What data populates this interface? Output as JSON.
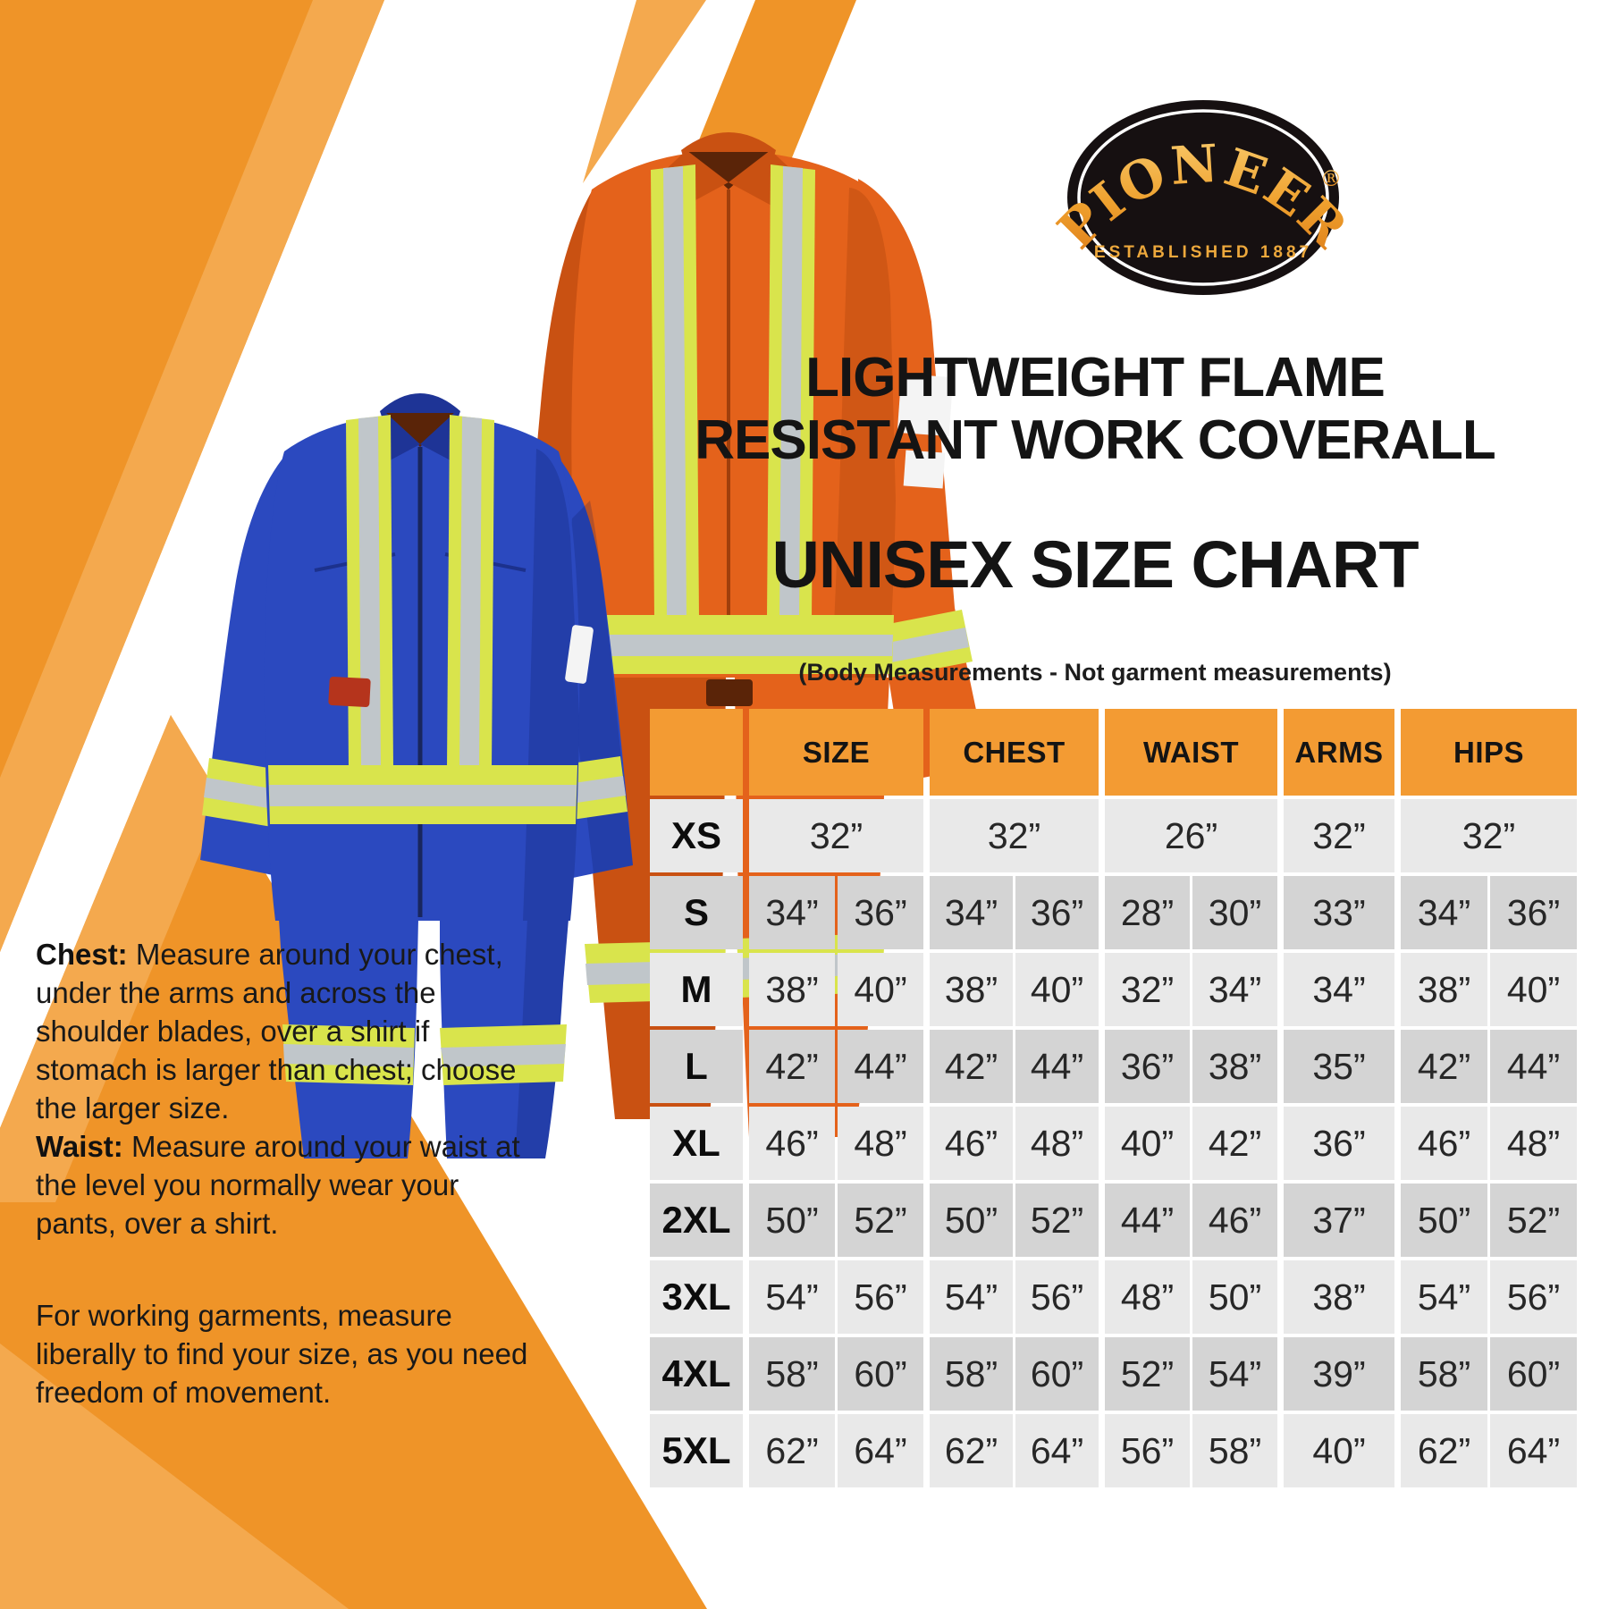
{
  "brand": {
    "name": "PIONEER",
    "registered_mark": "®",
    "established": "ESTABLISHED 1887"
  },
  "title": {
    "line1": "LIGHTWEIGHT FLAME",
    "line2": "RESISTANT WORK COVERALL"
  },
  "subtitle": "UNISEX SIZE CHART",
  "note": "(Body Measurements - Not garment measurements)",
  "size_chart": {
    "columns": [
      "SIZE",
      "CHEST",
      "WAIST",
      "ARMS",
      "HIPS"
    ],
    "rows": [
      {
        "label": "XS",
        "size": [
          "32”"
        ],
        "chest": [
          "32”"
        ],
        "waist": [
          "26”"
        ],
        "arms": [
          "32”"
        ],
        "hips": [
          "32”"
        ]
      },
      {
        "label": "S",
        "size": [
          "34”",
          "36”"
        ],
        "chest": [
          "34”",
          "36”"
        ],
        "waist": [
          "28”",
          "30”"
        ],
        "arms": [
          "33”"
        ],
        "hips": [
          "34”",
          "36”"
        ]
      },
      {
        "label": "M",
        "size": [
          "38”",
          "40”"
        ],
        "chest": [
          "38”",
          "40”"
        ],
        "waist": [
          "32”",
          "34”"
        ],
        "arms": [
          "34”"
        ],
        "hips": [
          "38”",
          "40”"
        ]
      },
      {
        "label": "L",
        "size": [
          "42”",
          "44”"
        ],
        "chest": [
          "42”",
          "44”"
        ],
        "waist": [
          "36”",
          "38”"
        ],
        "arms": [
          "35”"
        ],
        "hips": [
          "42”",
          "44”"
        ]
      },
      {
        "label": "XL",
        "size": [
          "46”",
          "48”"
        ],
        "chest": [
          "46”",
          "48”"
        ],
        "waist": [
          "40”",
          "42”"
        ],
        "arms": [
          "36”"
        ],
        "hips": [
          "46”",
          "48”"
        ]
      },
      {
        "label": "2XL",
        "size": [
          "50”",
          "52”"
        ],
        "chest": [
          "50”",
          "52”"
        ],
        "waist": [
          "44”",
          "46”"
        ],
        "arms": [
          "37”"
        ],
        "hips": [
          "50”",
          "52”"
        ]
      },
      {
        "label": "3XL",
        "size": [
          "54”",
          "56”"
        ],
        "chest": [
          "54”",
          "56”"
        ],
        "waist": [
          "48”",
          "50”"
        ],
        "arms": [
          "38”"
        ],
        "hips": [
          "54”",
          "56”"
        ]
      },
      {
        "label": "4XL",
        "size": [
          "58”",
          "60”"
        ],
        "chest": [
          "58”",
          "60”"
        ],
        "waist": [
          "52”",
          "54”"
        ],
        "arms": [
          "39”"
        ],
        "hips": [
          "58”",
          "60”"
        ]
      },
      {
        "label": "5XL",
        "size": [
          "62”",
          "64”"
        ],
        "chest": [
          "62”",
          "64”"
        ],
        "waist": [
          "56”",
          "58”"
        ],
        "arms": [
          "40”"
        ],
        "hips": [
          "62”",
          "64”"
        ]
      }
    ]
  },
  "chart_data": {
    "type": "table",
    "title": "Unisex size chart (body measurements)",
    "columns": [
      "",
      "SIZE",
      "CHEST",
      "WAIST",
      "ARMS",
      "HIPS"
    ],
    "rows": [
      [
        "XS",
        "32”",
        "32”",
        "26”",
        "32”",
        "32”"
      ],
      [
        "S",
        "34”–36”",
        "34”–36”",
        "28”–30”",
        "33”",
        "34”–36”"
      ],
      [
        "M",
        "38”–40”",
        "38”–40”",
        "32”–34”",
        "34”",
        "38”–40”"
      ],
      [
        "L",
        "42”–44”",
        "42”–44”",
        "36”–38”",
        "35”",
        "42”–44”"
      ],
      [
        "XL",
        "46”–48”",
        "46”–48”",
        "40”–42”",
        "36”",
        "46”–48”"
      ],
      [
        "2XL",
        "50”–52”",
        "50”–52”",
        "44”–46”",
        "37”",
        "50”–52”"
      ],
      [
        "3XL",
        "54”–56”",
        "54”–56”",
        "48”–50”",
        "38”",
        "54”–56”"
      ],
      [
        "4XL",
        "58”–60”",
        "58”–60”",
        "52”–54”",
        "39”",
        "58”–60”"
      ],
      [
        "5XL",
        "62”–64”",
        "62”–64”",
        "56”–58”",
        "40”",
        "62”–64”"
      ]
    ]
  },
  "instructions": {
    "chest_label": "Chest:",
    "chest_text": " Measure around your chest, under the arms and across the shoulder blades, over a shirt if stomach is larger than chest; choose the larger size.",
    "waist_label": "Waist:",
    "waist_text": " Measure around your waist at the level you normally wear your pants, over a shirt.",
    "fit_note": "For working garments, measure liberally to find your size, as you need freedom of movement."
  },
  "colors": {
    "bg_orange": "#EF9428",
    "bg_orange_light": "#F4A94E",
    "header_orange": "#F39B33",
    "row_light": "#E9E9E9",
    "row_dark": "#D4D4D4",
    "coverall_blue": "#2B49BF",
    "coverall_blue_dark": "#1E3496",
    "coverall_orange": "#E4621B",
    "coverall_orange_dark": "#C95112",
    "tape_yellow": "#D9E44C",
    "tape_silver": "#C0C6CA",
    "brand_gold": "#EDA83C",
    "text_dark": "#141414"
  }
}
